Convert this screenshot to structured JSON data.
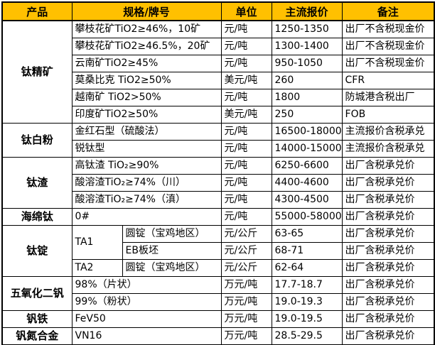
{
  "colors": {
    "header_bg": "#FFC000",
    "grid_line": "#000000",
    "text": "#000000",
    "background": "#FFFFFF"
  },
  "table": {
    "columns": [
      {
        "id": "product",
        "label": "产品",
        "colspan": 1
      },
      {
        "id": "spec",
        "label": "规格/牌号",
        "colspan": 2
      },
      {
        "id": "unit",
        "label": "单位",
        "colspan": 1
      },
      {
        "id": "price",
        "label": "主流报价",
        "colspan": 1
      },
      {
        "id": "note",
        "label": "备注",
        "colspan": 1
      }
    ],
    "rows": [
      [
        {
          "t": "钛精矿",
          "kind": "product",
          "rs": 6
        },
        {
          "t": "攀枝花矿TiO2≥46%，10矿",
          "kind": "spec",
          "cs": 2
        },
        {
          "t": "元/吨",
          "kind": "unit"
        },
        {
          "t": "1250-1350",
          "kind": "price"
        },
        {
          "t": "出厂不含税现金价",
          "kind": "note"
        }
      ],
      [
        {
          "t": "攀枝花矿TiO2≥46.5%，20矿",
          "kind": "spec",
          "cs": 2
        },
        {
          "t": "元/吨",
          "kind": "unit"
        },
        {
          "t": "1300-1400",
          "kind": "price"
        },
        {
          "t": "出厂不含税现金价",
          "kind": "note"
        }
      ],
      [
        {
          "t": "云南矿TiO2≥45%",
          "kind": "spec",
          "cs": 2
        },
        {
          "t": "元/吨",
          "kind": "unit"
        },
        {
          "t": "950-1050",
          "kind": "price"
        },
        {
          "t": "出厂不含税现金价",
          "kind": "note"
        }
      ],
      [
        {
          "t": "莫桑比克 TiO2≥50%",
          "kind": "spec",
          "cs": 2
        },
        {
          "t": "美元/吨",
          "kind": "unit"
        },
        {
          "t": "260",
          "kind": "price"
        },
        {
          "t": "CFR",
          "kind": "note"
        }
      ],
      [
        {
          "t": "越南矿 TiO2>50%",
          "kind": "spec",
          "cs": 2
        },
        {
          "t": "元/吨",
          "kind": "unit"
        },
        {
          "t": "1800",
          "kind": "price"
        },
        {
          "t": "防城港含税出厂",
          "kind": "note"
        }
      ],
      [
        {
          "t": "印度矿TiO2≥50%",
          "kind": "spec",
          "cs": 2
        },
        {
          "t": "美元/吨",
          "kind": "unit"
        },
        {
          "t": "250",
          "kind": "price"
        },
        {
          "t": "FOB",
          "kind": "note"
        }
      ],
      [
        {
          "t": "钛白粉",
          "kind": "product",
          "rs": 2
        },
        {
          "t": "金红石型（硫酸法）",
          "kind": "spec",
          "cs": 2
        },
        {
          "t": "元/吨",
          "kind": "unit"
        },
        {
          "t": "16500-18000",
          "kind": "price"
        },
        {
          "t": "主流报价含税承兑",
          "kind": "note"
        }
      ],
      [
        {
          "t": "锐钛型",
          "kind": "spec",
          "cs": 2
        },
        {
          "t": "元/吨",
          "kind": "unit"
        },
        {
          "t": "14000-15000",
          "kind": "price"
        },
        {
          "t": "主流报价含税承兑",
          "kind": "note"
        }
      ],
      [
        {
          "t": "钛渣",
          "kind": "product",
          "rs": 3
        },
        {
          "t": "高钛渣 TiO₂≥90%",
          "kind": "spec",
          "cs": 2
        },
        {
          "t": "元/吨",
          "kind": "unit"
        },
        {
          "t": "6250-6600",
          "kind": "price"
        },
        {
          "t": "出厂含税承兑价",
          "kind": "note"
        }
      ],
      [
        {
          "t": "酸溶渣TiO₂≥74%（川）",
          "kind": "spec",
          "cs": 2
        },
        {
          "t": "元/吨",
          "kind": "unit"
        },
        {
          "t": "4400-4600",
          "kind": "price"
        },
        {
          "t": "出厂含税承兑价",
          "kind": "note"
        }
      ],
      [
        {
          "t": "酸溶渣TiO₂≥74%（滇）",
          "kind": "spec",
          "cs": 2
        },
        {
          "t": "元/吨",
          "kind": "unit"
        },
        {
          "t": "4300-4500",
          "kind": "price"
        },
        {
          "t": "出厂含税承兑价",
          "kind": "note"
        }
      ],
      [
        {
          "t": "海绵钛",
          "kind": "product"
        },
        {
          "t": "0#",
          "kind": "spec",
          "cs": 2
        },
        {
          "t": "元/吨",
          "kind": "unit"
        },
        {
          "t": "55000-58000",
          "kind": "price"
        },
        {
          "t": "出厂含税承兑价",
          "kind": "note"
        }
      ],
      [
        {
          "t": "钛锭",
          "kind": "product",
          "rs": 3
        },
        {
          "t": "TA1",
          "kind": "spec",
          "rs": 2
        },
        {
          "t": "圆锭（宝鸡地区）",
          "kind": "spec"
        },
        {
          "t": "元/公斤",
          "kind": "unit"
        },
        {
          "t": "63-65",
          "kind": "price"
        },
        {
          "t": "出厂含税承兑价",
          "kind": "note"
        }
      ],
      [
        {
          "t": "EB板坯",
          "kind": "spec"
        },
        {
          "t": "元/公斤",
          "kind": "unit"
        },
        {
          "t": "68-71",
          "kind": "price"
        },
        {
          "t": "出厂含税承兑价",
          "kind": "note"
        }
      ],
      [
        {
          "t": "TA2",
          "kind": "spec"
        },
        {
          "t": "圆锭（宝鸡地区）",
          "kind": "spec"
        },
        {
          "t": "元/公斤",
          "kind": "unit"
        },
        {
          "t": "62-64",
          "kind": "price"
        },
        {
          "t": "出厂含税承兑价",
          "kind": "note"
        }
      ],
      [
        {
          "t": "五氧化二钒",
          "kind": "product",
          "rs": 2
        },
        {
          "t": "98%（片状）",
          "kind": "spec",
          "cs": 2
        },
        {
          "t": "万元/吨",
          "kind": "unit"
        },
        {
          "t": "17.7-18.7",
          "kind": "price"
        },
        {
          "t": "出厂含税承兑价",
          "kind": "note"
        }
      ],
      [
        {
          "t": "99%（粉状）",
          "kind": "spec",
          "cs": 2
        },
        {
          "t": "万元/吨",
          "kind": "unit"
        },
        {
          "t": "19.0-19.3",
          "kind": "price"
        },
        {
          "t": "出厂含税承兑价",
          "kind": "note"
        }
      ],
      [
        {
          "t": "钒铁",
          "kind": "product"
        },
        {
          "t": "FeV50",
          "kind": "spec",
          "cs": 2
        },
        {
          "t": "万元/吨",
          "kind": "unit"
        },
        {
          "t": "19.0-19.5",
          "kind": "price"
        },
        {
          "t": "出厂含税承兑价",
          "kind": "note"
        }
      ],
      [
        {
          "t": "钒氮合金",
          "kind": "product"
        },
        {
          "t": "VN16",
          "kind": "spec",
          "cs": 2
        },
        {
          "t": "万元/吨",
          "kind": "unit"
        },
        {
          "t": "28.5-29.5",
          "kind": "price"
        },
        {
          "t": "出厂含税承兑价",
          "kind": "note"
        }
      ]
    ]
  }
}
